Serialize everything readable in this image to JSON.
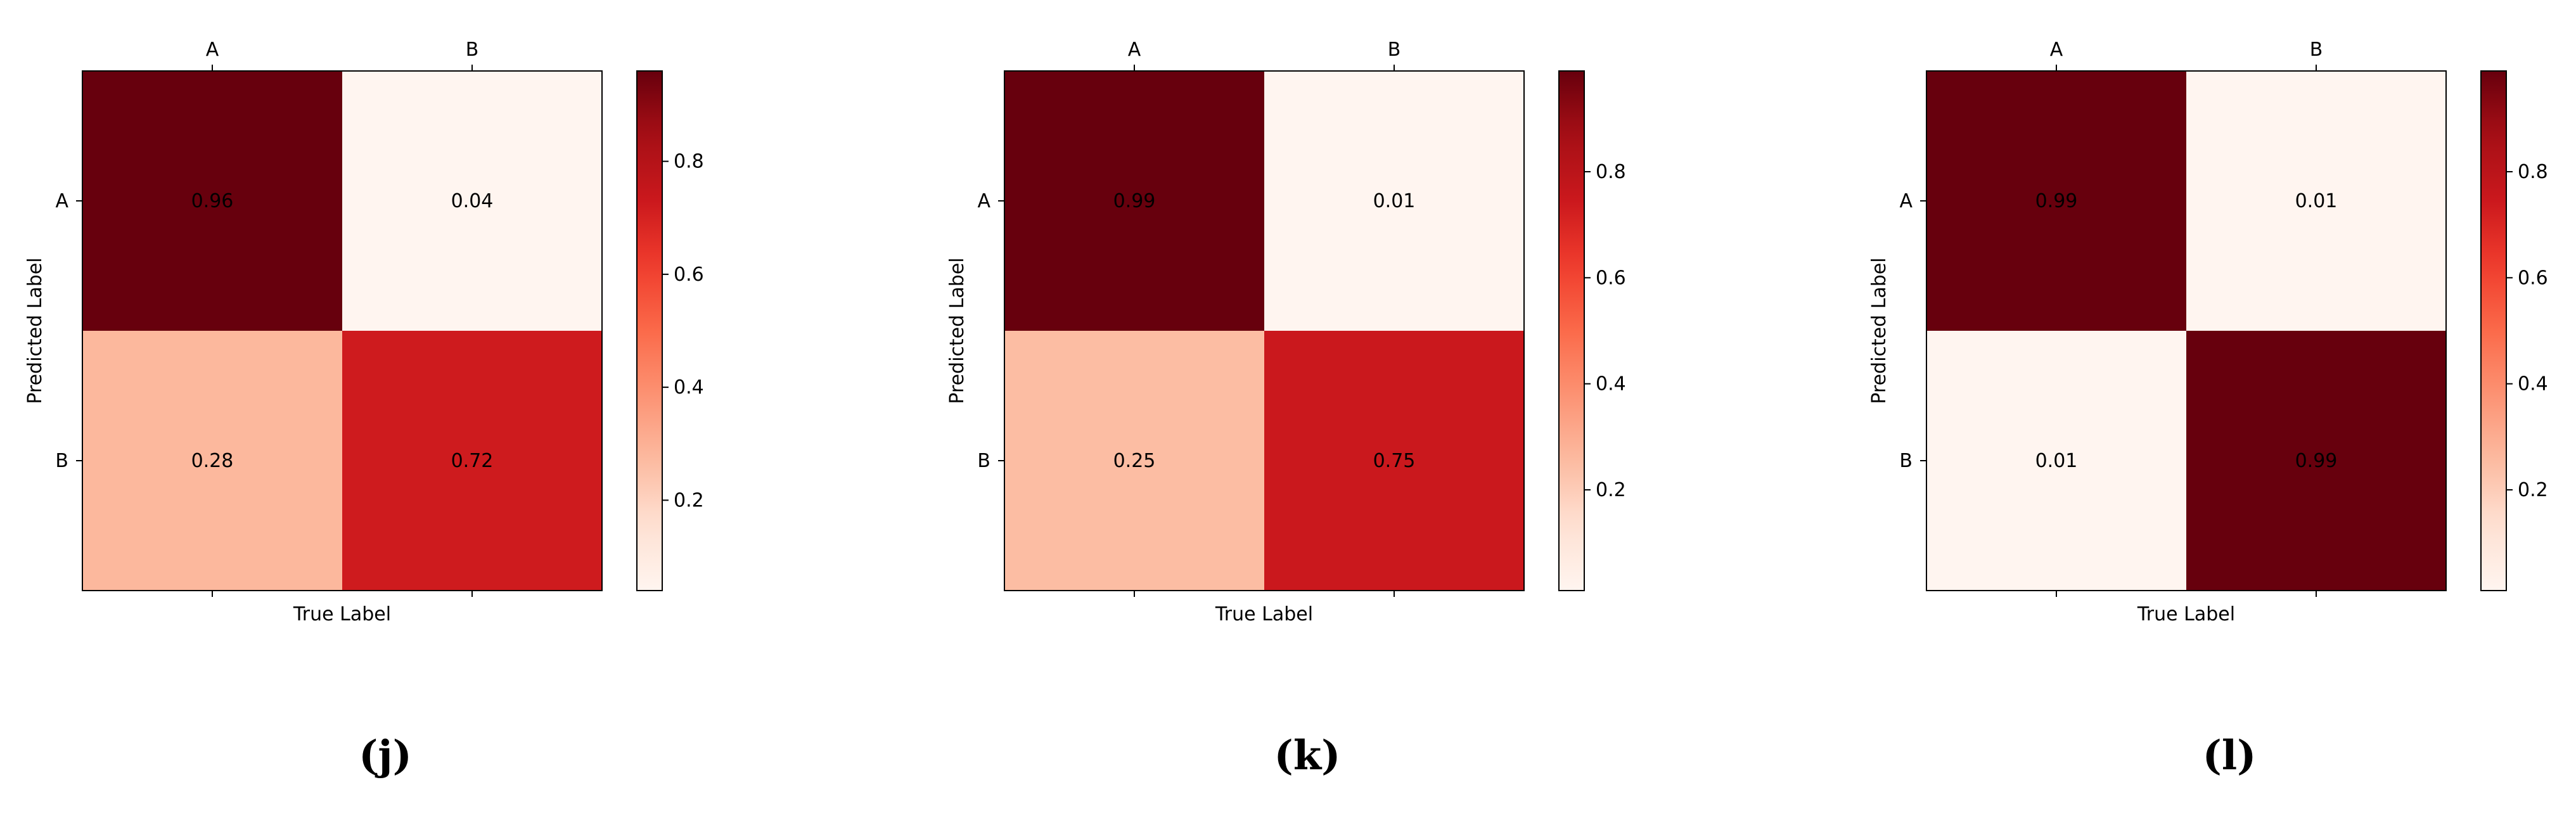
{
  "chart_data": [
    {
      "type": "heatmap",
      "panel_label": "(j)",
      "xlabel": "True Label",
      "ylabel": "Predicted Label",
      "x_categories": [
        "A",
        "B"
      ],
      "y_categories": [
        "A",
        "B"
      ],
      "values": [
        [
          0.96,
          0.04
        ],
        [
          0.28,
          0.72
        ]
      ],
      "value_labels": [
        [
          "0.96",
          "0.04"
        ],
        [
          "0.28",
          "0.72"
        ]
      ],
      "colormap": "Reds",
      "colorbar": {
        "range": [
          0.04,
          0.96
        ],
        "ticks": [
          0.2,
          0.4,
          0.6,
          0.8
        ],
        "tick_labels": [
          "0.2",
          "0.4",
          "0.6",
          "0.8"
        ]
      }
    },
    {
      "type": "heatmap",
      "panel_label": "(k)",
      "xlabel": "True Label",
      "ylabel": "Predicted Label",
      "x_categories": [
        "A",
        "B"
      ],
      "y_categories": [
        "A",
        "B"
      ],
      "values": [
        [
          0.99,
          0.01
        ],
        [
          0.25,
          0.75
        ]
      ],
      "value_labels": [
        [
          "0.99",
          "0.01"
        ],
        [
          "0.25",
          "0.75"
        ]
      ],
      "colormap": "Reds",
      "colorbar": {
        "range": [
          0.01,
          0.99
        ],
        "ticks": [
          0.2,
          0.4,
          0.6,
          0.8
        ],
        "tick_labels": [
          "0.2",
          "0.4",
          "0.6",
          "0.8"
        ]
      }
    },
    {
      "type": "heatmap",
      "panel_label": "(l)",
      "xlabel": "True Label",
      "ylabel": "Predicted Label",
      "x_categories": [
        "A",
        "B"
      ],
      "y_categories": [
        "A",
        "B"
      ],
      "values": [
        [
          0.99,
          0.01
        ],
        [
          0.01,
          0.99
        ]
      ],
      "value_labels": [
        [
          "0.99",
          "0.01"
        ],
        [
          "0.01",
          "0.99"
        ]
      ],
      "colormap": "Reds",
      "colorbar": {
        "range": [
          0.01,
          0.99
        ],
        "ticks": [
          0.2,
          0.4,
          0.6,
          0.8
        ],
        "tick_labels": [
          "0.2",
          "0.4",
          "0.6",
          "0.8"
        ]
      }
    }
  ]
}
